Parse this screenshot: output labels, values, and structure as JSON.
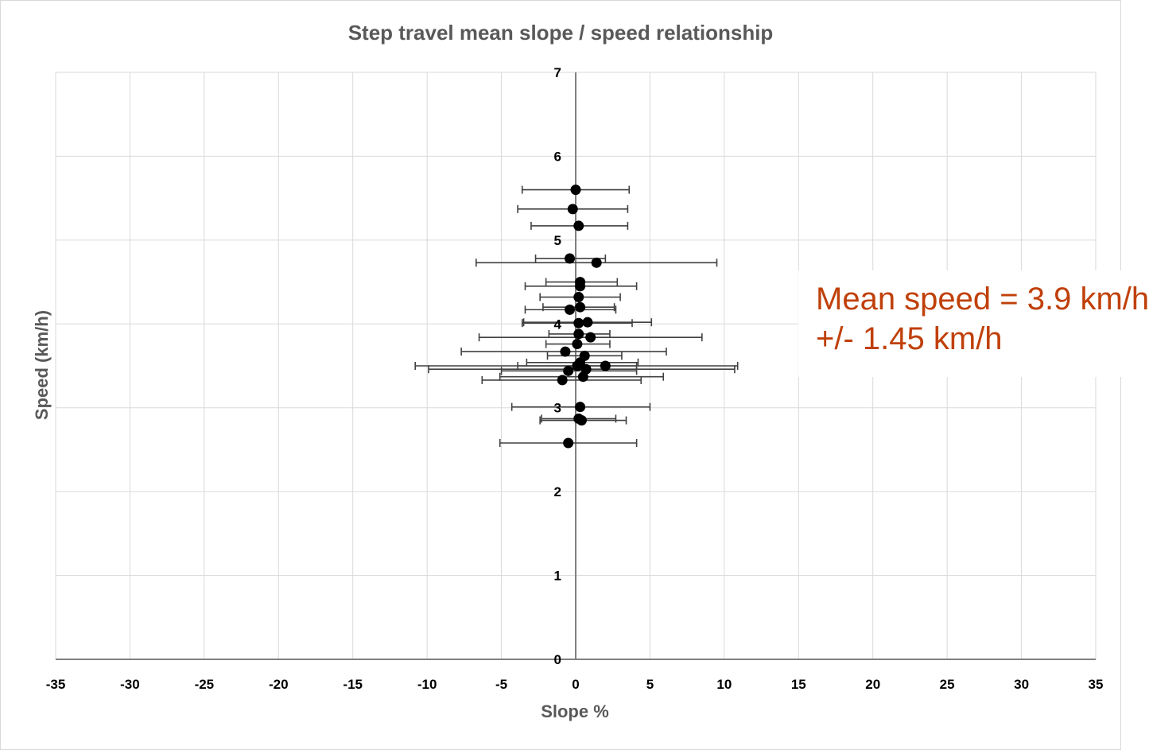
{
  "chart_data": {
    "type": "scatter",
    "title": "Step travel mean slope / speed relationship",
    "xlabel": "Slope %",
    "ylabel": "Speed (km/h)",
    "xlim": [
      -35,
      35
    ],
    "ylim": [
      0,
      7
    ],
    "x_ticks": [
      -35,
      -30,
      -25,
      -20,
      -15,
      -10,
      -5,
      0,
      5,
      10,
      15,
      20,
      25,
      30,
      35
    ],
    "y_ticks": [
      0,
      1,
      2,
      3,
      4,
      5,
      6,
      7
    ],
    "grid": true,
    "legend": "none",
    "marker_color": "#000000",
    "error_bar_color": "#404040",
    "points": [
      {
        "x": 0.0,
        "y": 5.6,
        "xerr_minus": 3.6,
        "xerr_plus": 3.6
      },
      {
        "x": -0.2,
        "y": 5.37,
        "xerr_minus": 3.7,
        "xerr_plus": 3.7
      },
      {
        "x": 0.2,
        "y": 5.17,
        "xerr_minus": 3.2,
        "xerr_plus": 3.3
      },
      {
        "x": -0.4,
        "y": 4.78,
        "xerr_minus": 2.3,
        "xerr_plus": 2.4
      },
      {
        "x": 1.4,
        "y": 4.73,
        "xerr_minus": 8.1,
        "xerr_plus": 8.1
      },
      {
        "x": 0.3,
        "y": 4.5,
        "xerr_minus": 2.3,
        "xerr_plus": 2.5
      },
      {
        "x": 0.3,
        "y": 4.45,
        "xerr_minus": 3.7,
        "xerr_plus": 3.8
      },
      {
        "x": 0.2,
        "y": 4.32,
        "xerr_minus": 2.6,
        "xerr_plus": 2.8
      },
      {
        "x": 0.3,
        "y": 4.2,
        "xerr_minus": 2.5,
        "xerr_plus": 2.3
      },
      {
        "x": -0.4,
        "y": 4.17,
        "xerr_minus": 3.0,
        "xerr_plus": 3.1
      },
      {
        "x": 0.2,
        "y": 4.01,
        "xerr_minus": 3.8,
        "xerr_plus": 3.6
      },
      {
        "x": 0.8,
        "y": 4.02,
        "xerr_minus": 4.3,
        "xerr_plus": 4.3
      },
      {
        "x": 0.2,
        "y": 3.88,
        "xerr_minus": 2.0,
        "xerr_plus": 2.1
      },
      {
        "x": 1.0,
        "y": 3.84,
        "xerr_minus": 7.5,
        "xerr_plus": 7.5
      },
      {
        "x": 0.1,
        "y": 3.76,
        "xerr_minus": 2.1,
        "xerr_plus": 2.2
      },
      {
        "x": -0.7,
        "y": 3.67,
        "xerr_minus": 7.0,
        "xerr_plus": 6.8
      },
      {
        "x": 0.6,
        "y": 3.62,
        "xerr_minus": 2.5,
        "xerr_plus": 2.5
      },
      {
        "x": 0.3,
        "y": 3.54,
        "xerr_minus": 3.6,
        "xerr_plus": 3.9
      },
      {
        "x": 0.1,
        "y": 3.5,
        "xerr_minus": 4.0,
        "xerr_plus": 4.0
      },
      {
        "x": 2.0,
        "y": 3.5,
        "xerr_minus": 12.8,
        "xerr_plus": 8.9
      },
      {
        "x": 0.7,
        "y": 3.46,
        "xerr_minus": 10.6,
        "xerr_plus": 10.0
      },
      {
        "x": -0.5,
        "y": 3.44,
        "xerr_minus": 4.5,
        "xerr_plus": 4.6
      },
      {
        "x": 0.5,
        "y": 3.37,
        "xerr_minus": 5.6,
        "xerr_plus": 5.4
      },
      {
        "x": -0.9,
        "y": 3.33,
        "xerr_minus": 5.4,
        "xerr_plus": 5.3
      },
      {
        "x": 0.3,
        "y": 3.01,
        "xerr_minus": 4.6,
        "xerr_plus": 4.7
      },
      {
        "x": 0.2,
        "y": 2.87,
        "xerr_minus": 2.5,
        "xerr_plus": 2.5
      },
      {
        "x": 0.4,
        "y": 2.85,
        "xerr_minus": 2.8,
        "xerr_plus": 3.0
      },
      {
        "x": -0.5,
        "y": 2.58,
        "xerr_minus": 4.6,
        "xerr_plus": 4.6
      }
    ],
    "annotation": {
      "line1": "Mean speed = 3.9 km/h",
      "line2": "+/- 1.45 km/h",
      "color": "#c0400a"
    }
  }
}
